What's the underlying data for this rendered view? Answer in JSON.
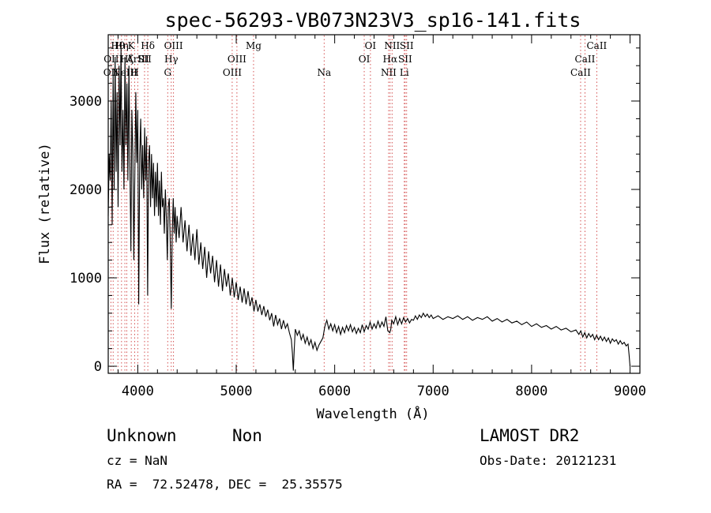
{
  "chart_data": {
    "type": "line",
    "title": "spec-56293-VB073N23V3_sp16-141.fits",
    "xlabel": "Wavelength (Å)",
    "ylabel": "Flux (relative)",
    "xlim": [
      3700,
      9100
    ],
    "ylim": [
      -80,
      3750
    ],
    "xticks": [
      4000,
      5000,
      6000,
      7000,
      8000,
      9000
    ],
    "yticks": [
      0,
      1000,
      2000,
      3000
    ],
    "grid": false,
    "series": [
      {
        "values": [
          [
            3700,
            1700
          ],
          [
            3710,
            2400
          ],
          [
            3720,
            2100
          ],
          [
            3730,
            3000
          ],
          [
            3740,
            1600
          ],
          [
            3750,
            3300
          ],
          [
            3760,
            2000
          ],
          [
            3770,
            3500
          ],
          [
            3780,
            2200
          ],
          [
            3790,
            3100
          ],
          [
            3800,
            1800
          ],
          [
            3810,
            3400
          ],
          [
            3820,
            2500
          ],
          [
            3830,
            3600
          ],
          [
            3840,
            2200
          ],
          [
            3850,
            2900
          ],
          [
            3860,
            2000
          ],
          [
            3870,
            3500
          ],
          [
            3880,
            2500
          ],
          [
            3890,
            3200
          ],
          [
            3900,
            2100
          ],
          [
            3910,
            3400
          ],
          [
            3920,
            2300
          ],
          [
            3930,
            1300
          ],
          [
            3940,
            2900
          ],
          [
            3950,
            2400
          ],
          [
            3960,
            1200
          ],
          [
            3970,
            2200
          ],
          [
            3980,
            3100
          ],
          [
            3990,
            2300
          ],
          [
            4000,
            2900
          ],
          [
            4010,
            700
          ],
          [
            4020,
            2400
          ],
          [
            4030,
            2800
          ],
          [
            4040,
            2000
          ],
          [
            4050,
            2500
          ],
          [
            4060,
            1900
          ],
          [
            4070,
            2700
          ],
          [
            4080,
            2100
          ],
          [
            4090,
            2600
          ],
          [
            4100,
            800
          ],
          [
            4110,
            2300
          ],
          [
            4120,
            2500
          ],
          [
            4130,
            1800
          ],
          [
            4140,
            2400
          ],
          [
            4150,
            1900
          ],
          [
            4160,
            2300
          ],
          [
            4170,
            1700
          ],
          [
            4180,
            2200
          ],
          [
            4190,
            1800
          ],
          [
            4200,
            2300
          ],
          [
            4210,
            1700
          ],
          [
            4220,
            2100
          ],
          [
            4230,
            1600
          ],
          [
            4240,
            2200
          ],
          [
            4250,
            1800
          ],
          [
            4260,
            1900
          ],
          [
            4270,
            1500
          ],
          [
            4280,
            2000
          ],
          [
            4290,
            1700
          ],
          [
            4300,
            1200
          ],
          [
            4310,
            1800
          ],
          [
            4320,
            1900
          ],
          [
            4330,
            1400
          ],
          [
            4340,
            650
          ],
          [
            4350,
            1500
          ],
          [
            4360,
            1900
          ],
          [
            4370,
            1500
          ],
          [
            4380,
            1800
          ],
          [
            4390,
            1400
          ],
          [
            4400,
            1700
          ],
          [
            4420,
            1450
          ],
          [
            4440,
            1800
          ],
          [
            4460,
            1400
          ],
          [
            4480,
            1650
          ],
          [
            4500,
            1300
          ],
          [
            4520,
            1600
          ],
          [
            4540,
            1250
          ],
          [
            4560,
            1500
          ],
          [
            4580,
            1200
          ],
          [
            4600,
            1550
          ],
          [
            4620,
            1150
          ],
          [
            4640,
            1400
          ],
          [
            4660,
            1100
          ],
          [
            4680,
            1350
          ],
          [
            4700,
            1000
          ],
          [
            4720,
            1300
          ],
          [
            4740,
            1050
          ],
          [
            4760,
            1250
          ],
          [
            4780,
            950
          ],
          [
            4800,
            1200
          ],
          [
            4820,
            900
          ],
          [
            4840,
            1150
          ],
          [
            4860,
            850
          ],
          [
            4880,
            1100
          ],
          [
            4900,
            900
          ],
          [
            4920,
            1050
          ],
          [
            4940,
            800
          ],
          [
            4960,
            1000
          ],
          [
            4980,
            780
          ],
          [
            5000,
            950
          ],
          [
            5020,
            750
          ],
          [
            5040,
            900
          ],
          [
            5060,
            720
          ],
          [
            5080,
            880
          ],
          [
            5100,
            700
          ],
          [
            5120,
            850
          ],
          [
            5140,
            680
          ],
          [
            5160,
            780
          ],
          [
            5180,
            620
          ],
          [
            5200,
            750
          ],
          [
            5220,
            620
          ],
          [
            5240,
            700
          ],
          [
            5260,
            580
          ],
          [
            5280,
            680
          ],
          [
            5300,
            560
          ],
          [
            5320,
            640
          ],
          [
            5340,
            520
          ],
          [
            5360,
            600
          ],
          [
            5380,
            450
          ],
          [
            5400,
            580
          ],
          [
            5420,
            470
          ],
          [
            5440,
            540
          ],
          [
            5460,
            420
          ],
          [
            5480,
            520
          ],
          [
            5500,
            430
          ],
          [
            5520,
            480
          ],
          [
            5540,
            380
          ],
          [
            5560,
            300
          ],
          [
            5570,
            150
          ],
          [
            5580,
            -50
          ],
          [
            5590,
            200
          ],
          [
            5600,
            420
          ],
          [
            5620,
            350
          ],
          [
            5640,
            400
          ],
          [
            5660,
            300
          ],
          [
            5680,
            360
          ],
          [
            5700,
            260
          ],
          [
            5720,
            330
          ],
          [
            5740,
            240
          ],
          [
            5760,
            300
          ],
          [
            5780,
            200
          ],
          [
            5800,
            270
          ],
          [
            5820,
            180
          ],
          [
            5840,
            240
          ],
          [
            5860,
            280
          ],
          [
            5880,
            320
          ],
          [
            5900,
            450
          ],
          [
            5920,
            520
          ],
          [
            5940,
            420
          ],
          [
            5960,
            480
          ],
          [
            5980,
            400
          ],
          [
            6000,
            470
          ],
          [
            6020,
            380
          ],
          [
            6040,
            450
          ],
          [
            6060,
            360
          ],
          [
            6080,
            440
          ],
          [
            6100,
            380
          ],
          [
            6120,
            460
          ],
          [
            6140,
            400
          ],
          [
            6160,
            470
          ],
          [
            6180,
            390
          ],
          [
            6200,
            440
          ],
          [
            6220,
            370
          ],
          [
            6240,
            430
          ],
          [
            6260,
            380
          ],
          [
            6280,
            470
          ],
          [
            6300,
            390
          ],
          [
            6320,
            460
          ],
          [
            6340,
            420
          ],
          [
            6360,
            500
          ],
          [
            6380,
            420
          ],
          [
            6400,
            480
          ],
          [
            6420,
            430
          ],
          [
            6440,
            510
          ],
          [
            6460,
            440
          ],
          [
            6480,
            500
          ],
          [
            6500,
            450
          ],
          [
            6520,
            560
          ],
          [
            6540,
            400
          ],
          [
            6560,
            380
          ],
          [
            6570,
            420
          ],
          [
            6580,
            520
          ],
          [
            6600,
            480
          ],
          [
            6620,
            560
          ],
          [
            6640,
            470
          ],
          [
            6660,
            540
          ],
          [
            6680,
            480
          ],
          [
            6700,
            550
          ],
          [
            6720,
            500
          ],
          [
            6740,
            540
          ],
          [
            6760,
            490
          ],
          [
            6780,
            530
          ],
          [
            6800,
            520
          ],
          [
            6820,
            570
          ],
          [
            6840,
            530
          ],
          [
            6860,
            580
          ],
          [
            6880,
            550
          ],
          [
            6900,
            600
          ],
          [
            6920,
            560
          ],
          [
            6940,
            590
          ],
          [
            6960,
            550
          ],
          [
            6980,
            580
          ],
          [
            7000,
            540
          ],
          [
            7050,
            570
          ],
          [
            7100,
            530
          ],
          [
            7150,
            560
          ],
          [
            7200,
            540
          ],
          [
            7250,
            570
          ],
          [
            7300,
            530
          ],
          [
            7350,
            560
          ],
          [
            7400,
            520
          ],
          [
            7450,
            550
          ],
          [
            7500,
            530
          ],
          [
            7550,
            560
          ],
          [
            7600,
            510
          ],
          [
            7650,
            540
          ],
          [
            7700,
            500
          ],
          [
            7750,
            530
          ],
          [
            7800,
            490
          ],
          [
            7850,
            510
          ],
          [
            7900,
            470
          ],
          [
            7950,
            500
          ],
          [
            8000,
            450
          ],
          [
            8050,
            480
          ],
          [
            8100,
            440
          ],
          [
            8150,
            460
          ],
          [
            8200,
            420
          ],
          [
            8250,
            450
          ],
          [
            8300,
            410
          ],
          [
            8350,
            430
          ],
          [
            8400,
            390
          ],
          [
            8450,
            410
          ],
          [
            8480,
            360
          ],
          [
            8500,
            400
          ],
          [
            8520,
            330
          ],
          [
            8540,
            380
          ],
          [
            8560,
            320
          ],
          [
            8580,
            370
          ],
          [
            8600,
            330
          ],
          [
            8620,
            360
          ],
          [
            8640,
            300
          ],
          [
            8660,
            350
          ],
          [
            8680,
            300
          ],
          [
            8700,
            340
          ],
          [
            8720,
            290
          ],
          [
            8740,
            330
          ],
          [
            8760,
            280
          ],
          [
            8780,
            320
          ],
          [
            8800,
            260
          ],
          [
            8820,
            310
          ],
          [
            8840,
            280
          ],
          [
            8860,
            300
          ],
          [
            8880,
            250
          ],
          [
            8900,
            290
          ],
          [
            8920,
            250
          ],
          [
            8940,
            270
          ],
          [
            8960,
            230
          ],
          [
            8980,
            250
          ],
          [
            8990,
            130
          ],
          [
            9000,
            0
          ]
        ]
      }
    ],
    "lines": [
      {
        "wl": 3727,
        "label": "OII",
        "row": 2
      },
      {
        "wl": 3750,
        "label": "OIII",
        "row": 1
      },
      {
        "wl": 3798,
        "label": "Hθ",
        "row": 0
      },
      {
        "wl": 3835,
        "label": "Hη",
        "row": 0
      },
      {
        "wl": 3869,
        "label": "NeIII",
        "row": 2
      },
      {
        "wl": 3889,
        "label": "Hζ",
        "row": 1
      },
      {
        "wl": 3934,
        "label": "K",
        "row": 0
      },
      {
        "wl": 3969,
        "label": "H",
        "row": 2
      },
      {
        "wl": 4000,
        "label": "ArIII",
        "row": 1
      },
      {
        "wl": 4069,
        "label": "SII",
        "row": 1
      },
      {
        "wl": 4102,
        "label": "Hδ",
        "row": 0
      },
      {
        "wl": 4304,
        "label": "G",
        "row": 2
      },
      {
        "wl": 4340,
        "label": "Hγ",
        "row": 1
      },
      {
        "wl": 4363,
        "label": "OIII",
        "row": 0
      },
      {
        "wl": 4959,
        "label": "OIII",
        "row": 2
      },
      {
        "wl": 5007,
        "label": "OIII",
        "row": 1
      },
      {
        "wl": 5176,
        "label": "Mg",
        "row": 0
      },
      {
        "wl": 5893,
        "label": "Na",
        "row": 2
      },
      {
        "wl": 6300,
        "label": "OI",
        "row": 1
      },
      {
        "wl": 6363,
        "label": "OI",
        "row": 0
      },
      {
        "wl": 6548,
        "label": "NII",
        "row": 2
      },
      {
        "wl": 6563,
        "label": "Hα",
        "row": 1
      },
      {
        "wl": 6583,
        "label": "NII",
        "row": 0
      },
      {
        "wl": 6707,
        "label": "Li",
        "row": 2
      },
      {
        "wl": 6716,
        "label": "SII",
        "row": 1
      },
      {
        "wl": 6731,
        "label": "SII",
        "row": 0
      },
      {
        "wl": 8498,
        "label": "CaII",
        "row": 2
      },
      {
        "wl": 8542,
        "label": "CaII",
        "row": 1
      },
      {
        "wl": 8662,
        "label": "CaII",
        "row": 0
      }
    ]
  },
  "info": {
    "class": "Unknown",
    "subclass": "Non",
    "survey": "LAMOST DR2",
    "cz": "cz = NaN",
    "obs_date": "Obs-Date: 20121231",
    "coords": "RA =  72.52478, DEC =  25.35575"
  }
}
